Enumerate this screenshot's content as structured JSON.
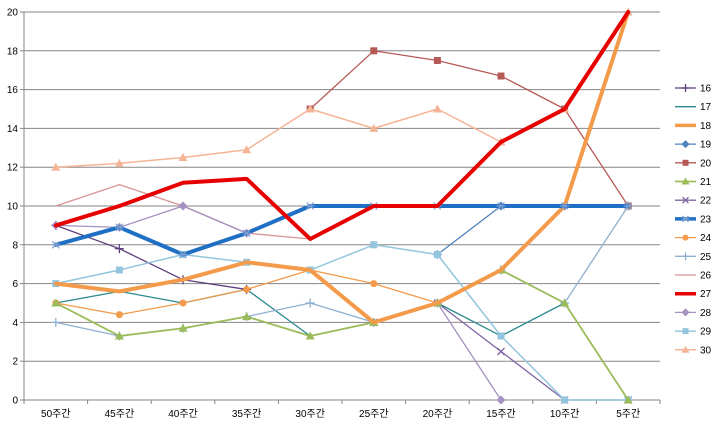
{
  "chart_data": {
    "type": "line",
    "title": "",
    "xlabel": "",
    "ylabel": "",
    "categories": [
      "50주간",
      "45주간",
      "40주간",
      "35주간",
      "30주간",
      "25주간",
      "20주간",
      "15주간",
      "10주간",
      "5주간"
    ],
    "ylim": [
      0,
      20
    ],
    "yticks": [
      0,
      2,
      4,
      6,
      8,
      10,
      12,
      14,
      16,
      18,
      20
    ],
    "grid": "horizontal",
    "legend_position": "right",
    "series": [
      {
        "name": "16",
        "color": "#5b3f7e",
        "width": 1.3,
        "marker": "plus",
        "values": [
          9,
          7.8,
          6.2,
          5.7,
          null,
          null,
          null,
          null,
          null,
          null
        ]
      },
      {
        "name": "17",
        "color": "#2b8a8f",
        "width": 1.3,
        "marker": "none",
        "values": [
          5,
          5.6,
          5,
          5.7,
          3.3,
          4,
          5,
          3.3,
          5,
          null
        ]
      },
      {
        "name": "18",
        "color": "#f39a4b",
        "width": 4,
        "marker": "none",
        "values": [
          6,
          5.6,
          6.2,
          7.1,
          6.7,
          4,
          5,
          6.7,
          10,
          20
        ]
      },
      {
        "name": "19",
        "color": "#4f81bd",
        "width": 1.3,
        "marker": "diamond",
        "values": [
          null,
          null,
          null,
          null,
          null,
          null,
          7.5,
          10,
          10,
          10
        ]
      },
      {
        "name": "20",
        "color": "#b65a57",
        "width": 1.3,
        "marker": "square",
        "values": [
          null,
          null,
          null,
          null,
          15,
          18,
          17.5,
          16.7,
          15,
          10
        ]
      },
      {
        "name": "21",
        "color": "#9bbb59",
        "width": 1.8,
        "marker": "triangle",
        "values": [
          5,
          3.3,
          3.7,
          4.3,
          3.3,
          4,
          5,
          6.7,
          5,
          0
        ]
      },
      {
        "name": "22",
        "color": "#8064a2",
        "width": 1.3,
        "marker": "x",
        "values": [
          null,
          null,
          null,
          null,
          null,
          4,
          5,
          2.5,
          0,
          0
        ]
      },
      {
        "name": "23",
        "color": "#1f6fc5",
        "width": 4,
        "marker": "star",
        "values": [
          8,
          8.9,
          7.5,
          8.6,
          10,
          10,
          10,
          10,
          10,
          10
        ]
      },
      {
        "name": "24",
        "color": "#f39a4b",
        "width": 1.3,
        "marker": "circle",
        "values": [
          5,
          4.4,
          5,
          5.7,
          6.7,
          6,
          5,
          null,
          null,
          null
        ]
      },
      {
        "name": "25",
        "color": "#8fb0d0",
        "width": 1.3,
        "marker": "plus",
        "values": [
          4,
          3.3,
          3.7,
          4.3,
          5,
          4,
          5,
          6.7,
          5,
          10
        ]
      },
      {
        "name": "26",
        "color": "#d99594",
        "width": 1.3,
        "marker": "none",
        "values": [
          10,
          11.1,
          10,
          8.6,
          8.3,
          null,
          null,
          null,
          null,
          null
        ]
      },
      {
        "name": "27",
        "color": "#e60000",
        "width": 4,
        "marker": "none",
        "values": [
          9,
          10,
          11.2,
          11.4,
          8.3,
          10,
          10,
          13.3,
          15,
          20
        ]
      },
      {
        "name": "28",
        "color": "#a591c1",
        "width": 1.3,
        "marker": "diamond",
        "values": [
          9,
          8.9,
          10,
          8.6,
          null,
          4,
          5,
          0,
          null,
          null
        ]
      },
      {
        "name": "29",
        "color": "#93c6de",
        "width": 1.5,
        "marker": "square",
        "values": [
          6,
          6.7,
          7.5,
          7.1,
          6.7,
          8,
          7.5,
          3.3,
          0,
          0
        ]
      },
      {
        "name": "30",
        "color": "#f5b496",
        "width": 1.5,
        "marker": "triangle",
        "values": [
          12,
          12.2,
          12.5,
          12.9,
          15,
          14,
          15,
          13.3,
          15,
          20
        ]
      }
    ]
  }
}
